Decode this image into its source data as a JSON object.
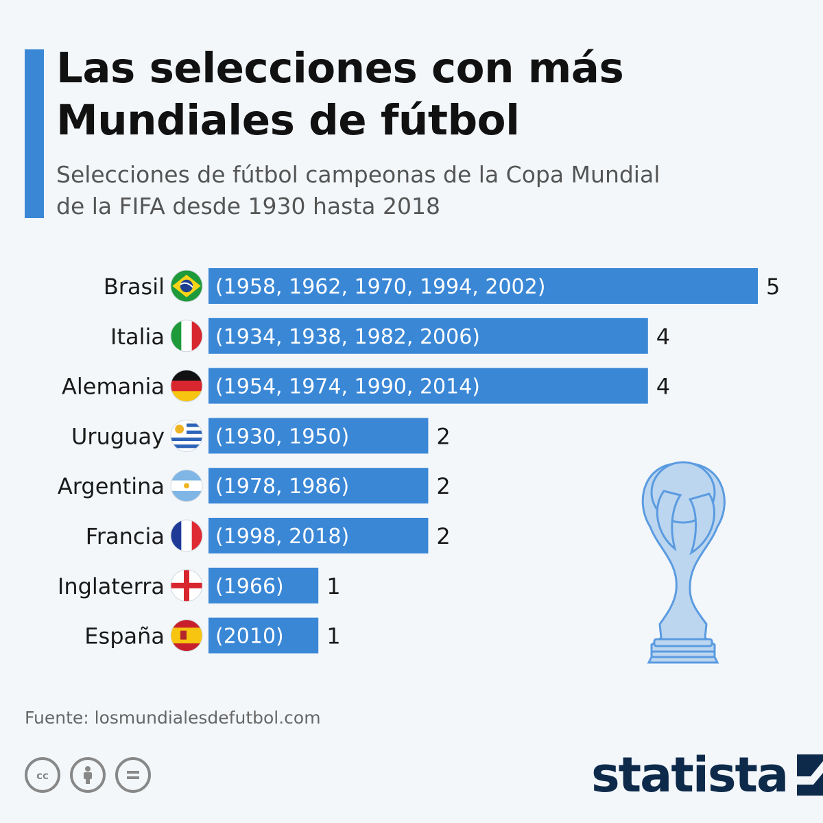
{
  "header": {
    "title_line1": "Las selecciones con más",
    "title_line2": "Mundiales de fútbol",
    "subtitle_line1": "Selecciones de fútbol campeonas de la Copa Mundial",
    "subtitle_line2": "de la FIFA desde 1930 hasta 2018"
  },
  "colors": {
    "accent": "#3a87d6",
    "bar": "#3a87d6",
    "bar_text": "#ffffff",
    "brand": "#0d2a4a",
    "trophy_fill": "#bcd6f0",
    "trophy_stroke": "#5b9be0"
  },
  "chart_data": {
    "type": "bar",
    "orientation": "horizontal",
    "categories": [
      "Brasil",
      "Italia",
      "Alemania",
      "Uruguay",
      "Argentina",
      "Francia",
      "Inglaterra",
      "España"
    ],
    "values": [
      5,
      4,
      4,
      2,
      2,
      2,
      1,
      1
    ],
    "bar_labels": [
      "(1958, 1962, 1970, 1994, 2002)",
      "(1934, 1938, 1982, 2006)",
      "(1954, 1974, 1990, 2014)",
      "(1930, 1950)",
      "(1978, 1986)",
      "(1998, 2018)",
      "(1966)",
      "(2010)"
    ],
    "flags": [
      "brazil-flag",
      "italy-flag",
      "germany-flag",
      "uruguay-flag",
      "argentina-flag",
      "france-flag",
      "england-flag",
      "spain-flag"
    ],
    "xlim": [
      0,
      5
    ],
    "grid": false
  },
  "footer": {
    "source": "Fuente: losmundialesdefutbol.com",
    "license_icons": [
      "cc-icon",
      "attribution-icon",
      "no-derivatives-icon"
    ],
    "brand": "statista"
  }
}
